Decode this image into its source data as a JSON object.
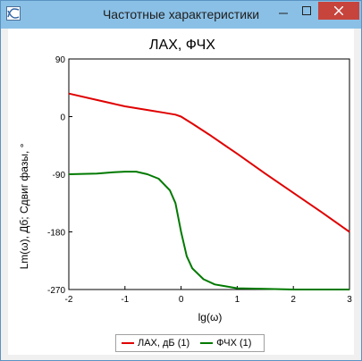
{
  "window": {
    "title": "Частотные характеристики",
    "min_label": "—",
    "max_label": "☐",
    "close_label": "✕"
  },
  "chart_data": {
    "type": "line",
    "title": "ЛАХ, ФЧХ",
    "xlabel": "lg(ω)",
    "ylabel": "Lm(ω), Дб; Сдвиг фазы, °",
    "xlim": [
      -2,
      3
    ],
    "ylim": [
      -270,
      90
    ],
    "x_ticks": [
      -2,
      -1,
      0,
      1,
      2,
      3
    ],
    "y_ticks": [
      90,
      0,
      -90,
      -180,
      -270
    ],
    "grid": false,
    "legend": "bottom",
    "series": [
      {
        "name": "ЛАХ, дБ (1)",
        "color": "#e00000",
        "x": [
          -2,
          -1.5,
          -1,
          -0.5,
          -0.3,
          -0.1,
          0,
          0.2,
          0.5,
          1,
          1.5,
          2,
          2.5,
          3
        ],
        "y": [
          36,
          26,
          16,
          9,
          6,
          3,
          0,
          -11,
          -28,
          -58,
          -89,
          -119,
          -149,
          -180
        ]
      },
      {
        "name": "ФЧХ (1)",
        "color": "#007a00",
        "x": [
          -2,
          -1.5,
          -1.2,
          -1,
          -0.8,
          -0.6,
          -0.4,
          -0.2,
          -0.1,
          0,
          0.1,
          0.2,
          0.4,
          0.6,
          1,
          1.5,
          2,
          2.5,
          3
        ],
        "y": [
          -90,
          -89,
          -87,
          -86,
          -86,
          -90,
          -97,
          -115,
          -135,
          -180,
          -218,
          -237,
          -254,
          -262,
          -268,
          -269,
          -270,
          -270,
          -270
        ]
      }
    ]
  }
}
